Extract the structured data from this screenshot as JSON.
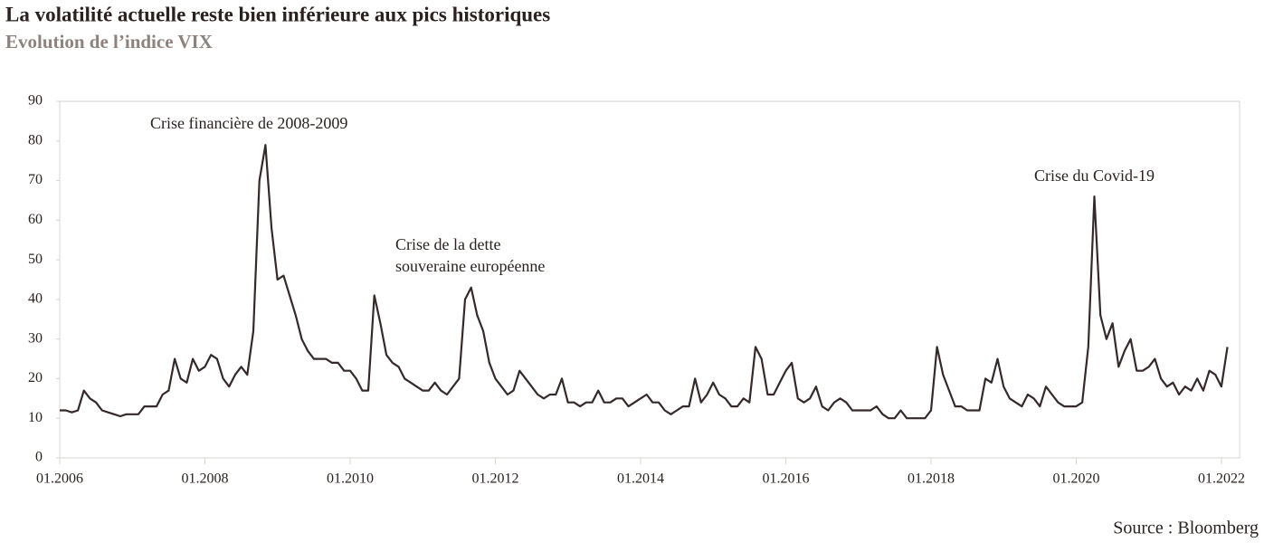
{
  "chart_data": {
    "type": "line",
    "title": "La volatilité actuelle reste bien inférieure aux pics historiques",
    "subtitle": "Evolution de l’indice VIX",
    "source": "Source : Bloomberg",
    "annotations": [
      "Crise financière de 2008-2009",
      "Crise de la dette",
      "souveraine européenne",
      "Crise du Covid-19"
    ],
    "x": [
      "01.2006",
      "02.2006",
      "03.2006",
      "04.2006",
      "05.2006",
      "06.2006",
      "07.2006",
      "08.2006",
      "09.2006",
      "10.2006",
      "11.2006",
      "12.2006",
      "01.2007",
      "02.2007",
      "03.2007",
      "04.2007",
      "05.2007",
      "06.2007",
      "07.2007",
      "08.2007",
      "09.2007",
      "10.2007",
      "11.2007",
      "12.2007",
      "01.2008",
      "02.2008",
      "03.2008",
      "04.2008",
      "05.2008",
      "06.2008",
      "07.2008",
      "08.2008",
      "09.2008",
      "10.2008",
      "11.2008",
      "12.2008",
      "01.2009",
      "02.2009",
      "03.2009",
      "04.2009",
      "05.2009",
      "06.2009",
      "07.2009",
      "08.2009",
      "09.2009",
      "10.2009",
      "11.2009",
      "12.2009",
      "01.2010",
      "02.2010",
      "03.2010",
      "04.2010",
      "05.2010",
      "06.2010",
      "07.2010",
      "08.2010",
      "09.2010",
      "10.2010",
      "11.2010",
      "12.2010",
      "01.2011",
      "02.2011",
      "03.2011",
      "04.2011",
      "05.2011",
      "06.2011",
      "07.2011",
      "08.2011",
      "09.2011",
      "10.2011",
      "11.2011",
      "12.2011",
      "01.2012",
      "02.2012",
      "03.2012",
      "04.2012",
      "05.2012",
      "06.2012",
      "07.2012",
      "08.2012",
      "09.2012",
      "10.2012",
      "11.2012",
      "12.2012",
      "01.2013",
      "02.2013",
      "03.2013",
      "04.2013",
      "05.2013",
      "06.2013",
      "07.2013",
      "08.2013",
      "09.2013",
      "10.2013",
      "11.2013",
      "12.2013",
      "01.2014",
      "02.2014",
      "03.2014",
      "04.2014",
      "05.2014",
      "06.2014",
      "07.2014",
      "08.2014",
      "09.2014",
      "10.2014",
      "11.2014",
      "12.2014",
      "01.2015",
      "02.2015",
      "03.2015",
      "04.2015",
      "05.2015",
      "06.2015",
      "07.2015",
      "08.2015",
      "09.2015",
      "10.2015",
      "11.2015",
      "12.2015",
      "01.2016",
      "02.2016",
      "03.2016",
      "04.2016",
      "05.2016",
      "06.2016",
      "07.2016",
      "08.2016",
      "09.2016",
      "10.2016",
      "11.2016",
      "12.2016",
      "01.2017",
      "02.2017",
      "03.2017",
      "04.2017",
      "05.2017",
      "06.2017",
      "07.2017",
      "08.2017",
      "09.2017",
      "10.2017",
      "11.2017",
      "12.2017",
      "01.2018",
      "02.2018",
      "03.2018",
      "04.2018",
      "05.2018",
      "06.2018",
      "07.2018",
      "08.2018",
      "09.2018",
      "10.2018",
      "11.2018",
      "12.2018",
      "01.2019",
      "02.2019",
      "03.2019",
      "04.2019",
      "05.2019",
      "06.2019",
      "07.2019",
      "08.2019",
      "09.2019",
      "10.2019",
      "11.2019",
      "12.2019",
      "01.2020",
      "02.2020",
      "03.2020",
      "04.2020",
      "05.2020",
      "06.2020",
      "07.2020",
      "08.2020",
      "09.2020",
      "10.2020",
      "11.2020",
      "12.2020",
      "01.2021",
      "02.2021",
      "03.2021",
      "04.2021",
      "05.2021",
      "06.2021",
      "07.2021",
      "08.2021",
      "09.2021",
      "10.2021",
      "11.2021",
      "12.2021",
      "01.2022",
      "02.2022"
    ],
    "series": [
      {
        "name": "VIX",
        "color": "#35292a",
        "values": [
          12,
          12,
          11.5,
          12,
          17,
          15,
          14,
          12,
          11.5,
          11,
          10.5,
          11,
          11,
          11,
          13,
          13,
          13,
          16,
          17,
          25,
          20,
          19,
          25,
          22,
          23,
          26,
          25,
          20,
          18,
          21,
          23,
          21,
          32,
          70,
          79,
          58,
          45,
          46,
          41,
          36,
          30,
          27,
          25,
          25,
          25,
          24,
          24,
          22,
          22,
          20,
          17,
          17,
          41,
          34,
          26,
          24,
          23,
          20,
          19,
          18,
          17,
          17,
          19,
          17,
          16,
          18,
          20,
          40,
          43,
          36,
          32,
          24,
          20,
          18,
          16,
          17,
          22,
          20,
          18,
          16,
          15,
          16,
          16,
          20,
          14,
          14,
          13,
          14,
          14,
          17,
          14,
          14,
          15,
          15,
          13,
          14,
          15,
          16,
          14,
          14,
          12,
          11,
          12,
          13,
          13,
          20,
          14,
          16,
          19,
          16,
          15,
          13,
          13,
          15,
          14,
          28,
          25,
          16,
          16,
          19,
          22,
          24,
          15,
          14,
          15,
          18,
          13,
          12,
          14,
          15,
          14,
          12,
          12,
          12,
          12,
          13,
          11,
          10,
          10,
          12,
          10,
          10,
          10,
          10,
          12,
          28,
          21,
          17,
          13,
          13,
          12,
          12,
          12,
          20,
          19,
          25,
          18,
          15,
          14,
          13,
          16,
          15,
          13,
          18,
          16,
          14,
          13,
          13,
          13,
          14,
          28,
          66,
          36,
          30,
          34,
          23,
          27,
          30,
          22,
          22,
          23,
          25,
          20,
          18,
          19,
          16,
          18,
          17,
          20,
          17,
          22,
          21,
          18,
          28
        ]
      }
    ],
    "xlim": [
      "01.2006",
      "04.2022"
    ],
    "xticks": [
      "01.2006",
      "01.2008",
      "01.2010",
      "01.2012",
      "01.2014",
      "01.2016",
      "01.2018",
      "01.2020",
      "01.2022"
    ],
    "ylim": [
      0,
      90
    ],
    "yticks": [
      0,
      10,
      20,
      30,
      40,
      50,
      60,
      70,
      80,
      90
    ]
  }
}
